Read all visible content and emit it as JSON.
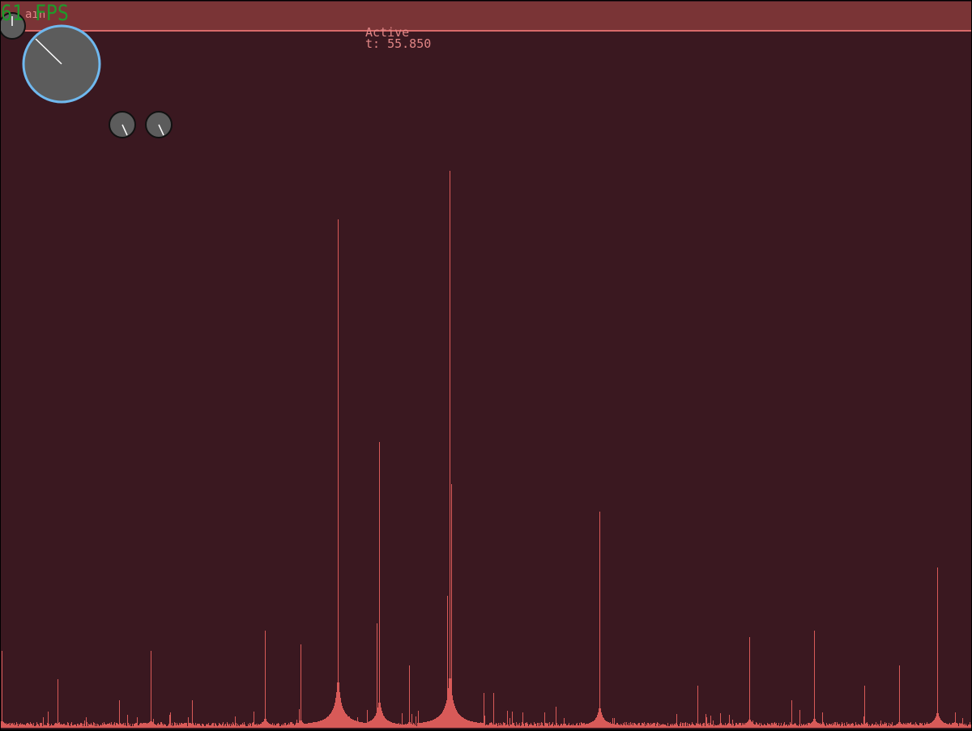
{
  "hud": {
    "fps": "61 FPS",
    "header_label": "aın",
    "status": "Active",
    "time": "t: 55.850"
  },
  "colors": {
    "background": "#3a1820",
    "header_bar": "#7a3436",
    "header_line": "#d96a6a",
    "spectrum_fill": "#d85a58",
    "fps_text": "#1f9a2a",
    "knob_fill": "#5c5c5c",
    "knob_ring_active": "#6fb8ee",
    "knob_ring": "#111111",
    "knob_pointer": "#ffffff"
  },
  "knobs": [
    {
      "name": "top-left-knob",
      "value": 0.5
    },
    {
      "name": "main-knob",
      "value": 0.125
    },
    {
      "name": "small-knob-1",
      "value": 0.45
    },
    {
      "name": "small-knob-2",
      "value": 0.45
    }
  ],
  "spectrum": {
    "peaks": [
      {
        "bin": 1,
        "level": 0.11
      },
      {
        "bin": 70,
        "level": 0.07
      },
      {
        "bin": 146,
        "level": 0.04
      },
      {
        "bin": 185,
        "level": 0.11
      },
      {
        "bin": 236,
        "level": 0.04
      },
      {
        "bin": 326,
        "level": 0.14
      },
      {
        "bin": 370,
        "level": 0.12
      },
      {
        "bin": 416,
        "level": 0.73
      },
      {
        "bin": 467,
        "level": 0.41
      },
      {
        "bin": 464,
        "level": 0.15
      },
      {
        "bin": 504,
        "level": 0.09
      },
      {
        "bin": 554,
        "level": 0.8
      },
      {
        "bin": 556,
        "level": 0.35
      },
      {
        "bin": 551,
        "level": 0.19
      },
      {
        "bin": 596,
        "level": 0.05
      },
      {
        "bin": 608,
        "level": 0.05
      },
      {
        "bin": 685,
        "level": 0.03
      },
      {
        "bin": 739,
        "level": 0.31
      },
      {
        "bin": 860,
        "level": 0.06
      },
      {
        "bin": 924,
        "level": 0.13
      },
      {
        "bin": 976,
        "level": 0.04
      },
      {
        "bin": 1004,
        "level": 0.14
      },
      {
        "bin": 1066,
        "level": 0.06
      },
      {
        "bin": 1109,
        "level": 0.09
      },
      {
        "bin": 1156,
        "level": 0.23
      }
    ]
  }
}
